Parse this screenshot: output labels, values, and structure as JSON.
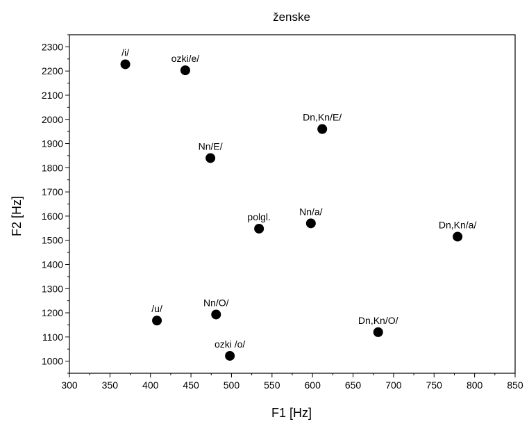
{
  "chart_data": {
    "type": "scatter",
    "title": "ženske",
    "xlabel": "F1 [Hz]",
    "ylabel": "F2 [Hz]",
    "xlim": [
      300,
      850
    ],
    "ylim": [
      950,
      2350
    ],
    "xticks": [
      300,
      350,
      400,
      450,
      500,
      550,
      600,
      650,
      700,
      750,
      800,
      850
    ],
    "yticks": [
      1000,
      1100,
      1200,
      1300,
      1400,
      1500,
      1600,
      1700,
      1800,
      1900,
      2000,
      2100,
      2200,
      2300
    ],
    "grid": false,
    "marker_color": "#000000",
    "points": [
      {
        "label": "/i/",
        "x": 369,
        "y": 2228
      },
      {
        "label": "ozki/e/",
        "x": 443,
        "y": 2203
      },
      {
        "label": "Dn,Kn/E/",
        "x": 612,
        "y": 1960
      },
      {
        "label": "Nn/E/",
        "x": 474,
        "y": 1840
      },
      {
        "label": "polgl.",
        "x": 534,
        "y": 1548
      },
      {
        "label": "Nn/a/",
        "x": 598,
        "y": 1570
      },
      {
        "label": "Dn,Kn/a/",
        "x": 779,
        "y": 1515
      },
      {
        "label": "/u/",
        "x": 408,
        "y": 1168
      },
      {
        "label": "Nn/O/",
        "x": 481,
        "y": 1193
      },
      {
        "label": "Dn,Kn/O/",
        "x": 681,
        "y": 1120
      },
      {
        "label": "ozki /o/",
        "x": 498,
        "y": 1022
      }
    ]
  }
}
